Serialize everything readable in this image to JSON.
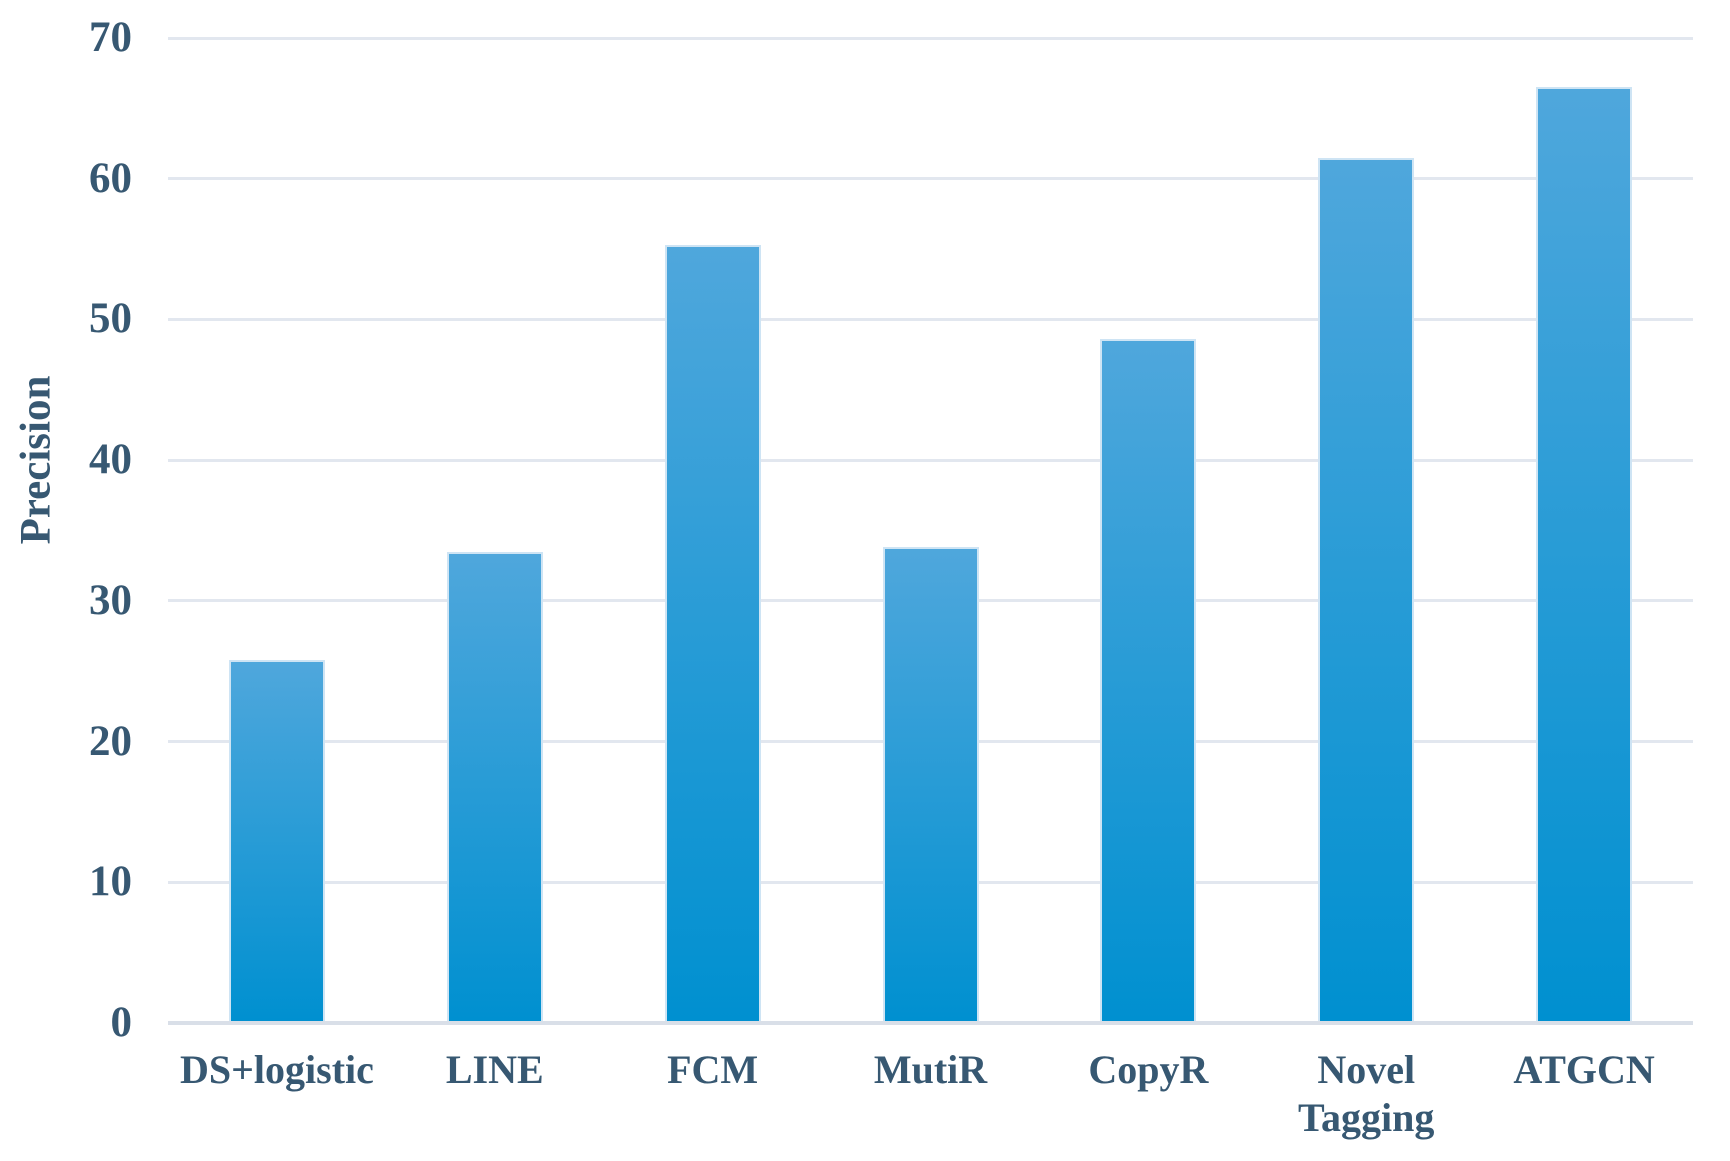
{
  "chart_data": {
    "type": "bar",
    "title": "",
    "xlabel": "",
    "ylabel": "Precision",
    "categories": [
      "DS+logistic",
      "LINE",
      "FCM",
      "MutiR",
      "CopyR",
      "Novel Tagging",
      "ATGCN"
    ],
    "values": [
      25.8,
      33.5,
      55.3,
      33.8,
      48.6,
      61.5,
      66.5
    ],
    "ylim": [
      0,
      70
    ],
    "yticks": [
      0,
      10,
      20,
      30,
      40,
      50,
      60,
      70
    ],
    "grid": "horizontal",
    "legend_position": "none",
    "colors": {
      "bar_gradient_top": "#4FA7DC",
      "bar_gradient_bottom": "#0090D0",
      "bar_border": "#CEE4F4",
      "gridline": "#E2E7EF",
      "axis_line": "#D9DFE8",
      "text": "#375872",
      "background": "#FFFFFF"
    }
  }
}
